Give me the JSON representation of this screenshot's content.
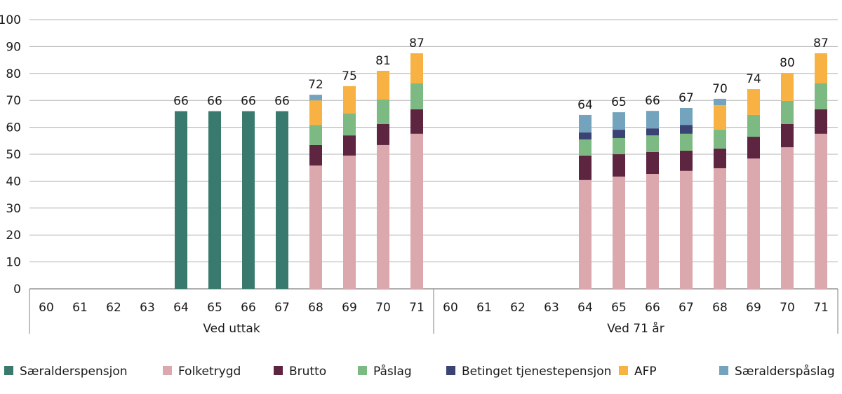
{
  "chart_data": {
    "type": "bar",
    "stacked": true,
    "ylim": [
      0,
      100
    ],
    "yticks": [
      0,
      10,
      20,
      30,
      40,
      50,
      60,
      70,
      80,
      90,
      100
    ],
    "grid": true,
    "legend_position": "bottom",
    "groups": [
      {
        "label": "Ved uttak",
        "categories": [
          "60",
          "61",
          "62",
          "63",
          "64",
          "65",
          "66",
          "67",
          "68",
          "69",
          "70",
          "71"
        ]
      },
      {
        "label": "Ved 71 år",
        "categories": [
          "60",
          "61",
          "62",
          "63",
          "64",
          "65",
          "66",
          "67",
          "68",
          "69",
          "70",
          "71"
        ]
      }
    ],
    "totals": [
      null,
      null,
      null,
      null,
      66,
      66,
      66,
      66,
      72,
      75,
      81,
      87,
      null,
      null,
      null,
      null,
      64,
      65,
      66,
      67,
      70,
      74,
      80,
      87
    ],
    "series": [
      {
        "name": "Særalderspensjon",
        "color": "#3a7a6e",
        "values": [
          0,
          0,
          0,
          0,
          66,
          66,
          66,
          66,
          0,
          0,
          0,
          0,
          0,
          0,
          0,
          0,
          0,
          0,
          0,
          0,
          0,
          0,
          0,
          0
        ]
      },
      {
        "name": "Folketrygd",
        "color": "#dba8ae",
        "values": [
          0,
          0,
          0,
          0,
          0,
          0,
          0,
          0,
          45.8,
          49.5,
          53.4,
          57.6,
          0,
          0,
          0,
          0,
          40.4,
          41.7,
          42.7,
          43.8,
          44.8,
          48.4,
          52.6,
          57.6
        ]
      },
      {
        "name": "Brutto",
        "color": "#5e2541",
        "values": [
          0,
          0,
          0,
          0,
          0,
          0,
          0,
          0,
          7.6,
          7.5,
          7.8,
          9.1,
          0,
          0,
          0,
          0,
          9.1,
          8.3,
          8.1,
          7.5,
          7.3,
          8.1,
          8.6,
          9.1
        ]
      },
      {
        "name": "Påslag",
        "color": "#7db983",
        "values": [
          0,
          0,
          0,
          0,
          0,
          0,
          0,
          0,
          7.5,
          8.1,
          9.1,
          9.6,
          0,
          0,
          0,
          0,
          6.0,
          6.0,
          6.2,
          6.3,
          7.0,
          8.1,
          8.6,
          9.6
        ]
      },
      {
        "name": "Betinget tjenestepensjon",
        "color": "#3b4375",
        "values": [
          0,
          0,
          0,
          0,
          0,
          0,
          0,
          0,
          0,
          0,
          0,
          0,
          0,
          0,
          0,
          0,
          2.6,
          3.1,
          2.6,
          3.3,
          0,
          0,
          0,
          0
        ]
      },
      {
        "name": "AFP",
        "color": "#f8b243",
        "values": [
          0,
          0,
          0,
          0,
          0,
          0,
          0,
          0,
          9.1,
          10.2,
          10.7,
          11.2,
          0,
          0,
          0,
          0,
          0,
          0,
          0,
          0,
          9.1,
          9.6,
          10.4,
          11.2
        ]
      },
      {
        "name": "Særalderspåslag",
        "color": "#73a3bd",
        "values": [
          0,
          0,
          0,
          0,
          0,
          0,
          0,
          0,
          2.1,
          0,
          0,
          0,
          0,
          0,
          0,
          0,
          6.5,
          6.5,
          6.5,
          6.3,
          2.4,
          0,
          0,
          0
        ]
      }
    ]
  }
}
